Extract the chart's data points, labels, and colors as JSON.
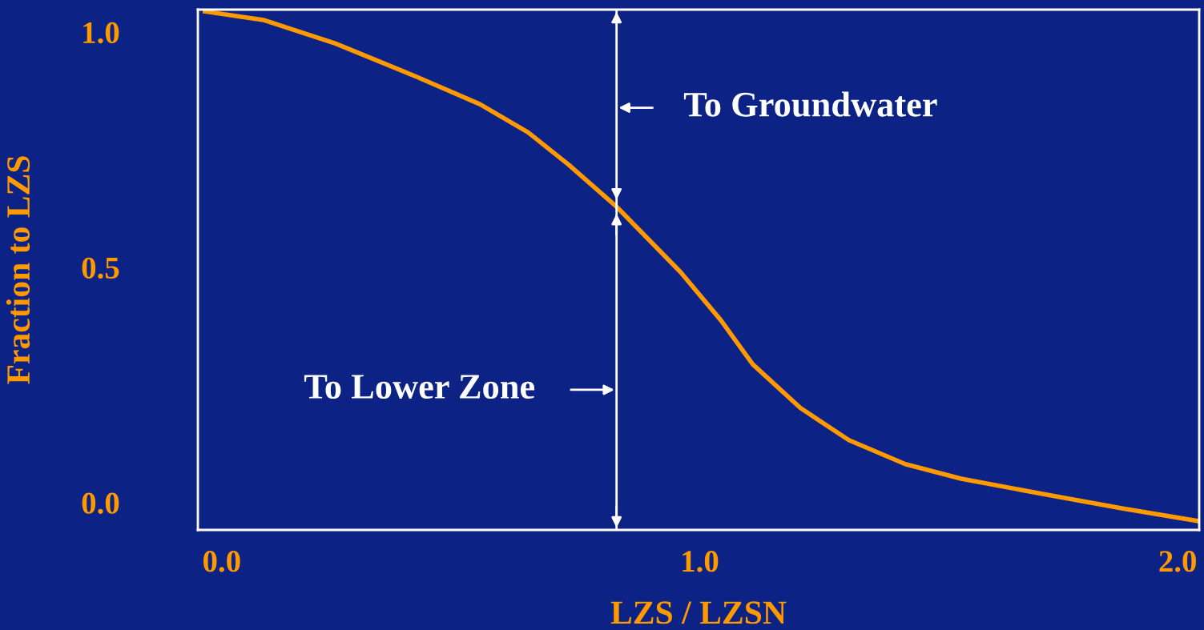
{
  "chart_data": {
    "type": "line",
    "xlabel": "LZS / LZSN",
    "ylabel": "Fraction to LZS",
    "x": [
      -0.035,
      0.087,
      0.238,
      0.406,
      0.54,
      0.641,
      0.725,
      0.826,
      0.96,
      1.044,
      1.111,
      1.211,
      1.312,
      1.43,
      1.547,
      1.715,
      1.883,
      2.042
    ],
    "series": [
      {
        "color": "#ff9900",
        "values": [
          1.044,
          1.026,
          0.976,
          0.906,
          0.847,
          0.787,
          0.719,
          0.629,
          0.49,
          0.388,
          0.294,
          0.201,
          0.133,
          0.082,
          0.051,
          0.019,
          -0.012,
          -0.039
        ]
      }
    ],
    "xlim": [
      -0.05,
      2.045
    ],
    "ylim": [
      -0.058,
      1.048
    ],
    "xticks": [
      {
        "value": 0,
        "label": "0.0"
      },
      {
        "value": 1,
        "label": "1.0"
      },
      {
        "value": 2,
        "label": "2.0"
      }
    ],
    "yticks": [
      {
        "value": 0,
        "label": "0.0"
      },
      {
        "value": 0.5,
        "label": "0.5"
      },
      {
        "value": 1,
        "label": "1.0"
      }
    ],
    "annotations": [
      "To Groundwater",
      "To Lower Zone"
    ],
    "ref_lines": [
      {
        "axis": "x",
        "value": 0.826,
        "color": "#ffffff"
      }
    ],
    "grid": false,
    "legend": false,
    "marker": "none",
    "line_style": "solid"
  }
}
